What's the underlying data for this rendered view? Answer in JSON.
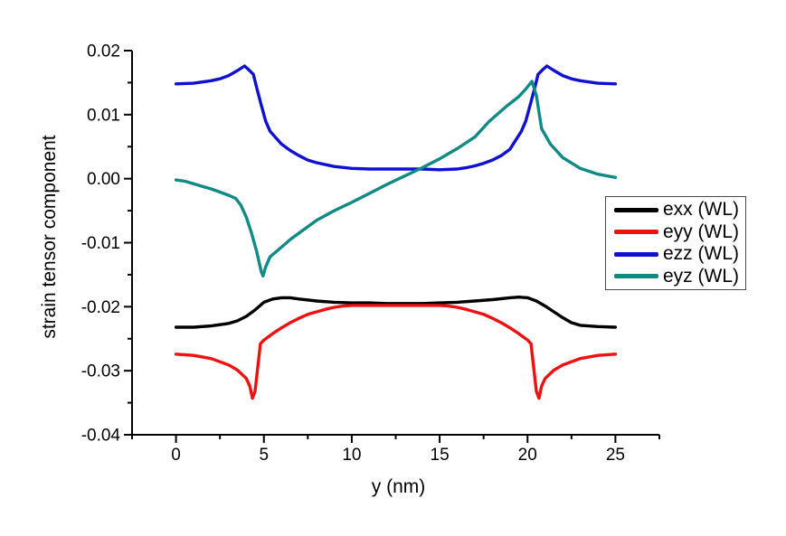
{
  "chart_data": {
    "type": "line",
    "title": "",
    "xlabel": "y (nm)",
    "ylabel": "strain tensor component",
    "xlim": [
      -2.5,
      27.5
    ],
    "ylim": [
      -0.04,
      0.02
    ],
    "grid": false,
    "legend_position": "right-center",
    "x_ticks": [
      {
        "value": 0,
        "label": "0"
      },
      {
        "value": 5,
        "label": "5"
      },
      {
        "value": 10,
        "label": "10"
      },
      {
        "value": 15,
        "label": "15"
      },
      {
        "value": 20,
        "label": "20"
      },
      {
        "value": 25,
        "label": "25"
      }
    ],
    "x_minor_ticks": [
      -2.5,
      2.5,
      7.5,
      12.5,
      17.5,
      22.5,
      27.5
    ],
    "y_ticks": [
      {
        "value": 0.02,
        "label": "0.02"
      },
      {
        "value": 0.01,
        "label": "0.01"
      },
      {
        "value": 0.0,
        "label": "0.00"
      },
      {
        "value": -0.01,
        "label": "-0.01"
      },
      {
        "value": -0.02,
        "label": "-0.02"
      },
      {
        "value": -0.03,
        "label": "-0.03"
      },
      {
        "value": -0.04,
        "label": "-0.04"
      }
    ],
    "y_minor_ticks": [
      0.015,
      0.005,
      -0.005,
      -0.015,
      -0.025,
      -0.035
    ],
    "series": [
      {
        "name": "exx (WL)",
        "color": "#000000",
        "points": [
          [
            0,
            -0.0232
          ],
          [
            1,
            -0.0232
          ],
          [
            2,
            -0.023
          ],
          [
            3,
            -0.0226
          ],
          [
            3.5,
            -0.0222
          ],
          [
            4,
            -0.0215
          ],
          [
            4.5,
            -0.0205
          ],
          [
            5,
            -0.0193
          ],
          [
            5.5,
            -0.0188
          ],
          [
            6,
            -0.0186
          ],
          [
            6.5,
            -0.0186
          ],
          [
            7,
            -0.0188
          ],
          [
            8,
            -0.0191
          ],
          [
            9,
            -0.0193
          ],
          [
            10,
            -0.0194
          ],
          [
            11,
            -0.0194
          ],
          [
            12,
            -0.0195
          ],
          [
            13,
            -0.0195
          ],
          [
            14,
            -0.0195
          ],
          [
            15,
            -0.0194
          ],
          [
            16,
            -0.0193
          ],
          [
            17,
            -0.0191
          ],
          [
            18,
            -0.0189
          ],
          [
            19,
            -0.0186
          ],
          [
            19.5,
            -0.0185
          ],
          [
            20,
            -0.0186
          ],
          [
            20.5,
            -0.0191
          ],
          [
            21,
            -0.0199
          ],
          [
            21.5,
            -0.0208
          ],
          [
            22,
            -0.0217
          ],
          [
            22.5,
            -0.0225
          ],
          [
            23,
            -0.0229
          ],
          [
            24,
            -0.0231
          ],
          [
            25,
            -0.0232
          ]
        ]
      },
      {
        "name": "eyy (WL)",
        "color": "#ee1111",
        "points": [
          [
            0,
            -0.0274
          ],
          [
            1,
            -0.0276
          ],
          [
            2,
            -0.0281
          ],
          [
            3,
            -0.0291
          ],
          [
            3.5,
            -0.0299
          ],
          [
            4,
            -0.0312
          ],
          [
            4.2,
            -0.0324
          ],
          [
            4.35,
            -0.0343
          ],
          [
            4.5,
            -0.0332
          ],
          [
            4.8,
            -0.0258
          ],
          [
            5,
            -0.0252
          ],
          [
            5.5,
            -0.0242
          ],
          [
            6,
            -0.0233
          ],
          [
            6.5,
            -0.0225
          ],
          [
            7,
            -0.0218
          ],
          [
            7.5,
            -0.0212
          ],
          [
            8,
            -0.0208
          ],
          [
            8.5,
            -0.0204
          ],
          [
            9,
            -0.0201
          ],
          [
            9.5,
            -0.0199
          ],
          [
            10,
            -0.0198
          ],
          [
            11,
            -0.0198
          ],
          [
            12,
            -0.0198
          ],
          [
            13,
            -0.0198
          ],
          [
            14,
            -0.0198
          ],
          [
            15,
            -0.0198
          ],
          [
            15.5,
            -0.0199
          ],
          [
            16,
            -0.0201
          ],
          [
            16.5,
            -0.0204
          ],
          [
            17,
            -0.0208
          ],
          [
            17.5,
            -0.0212
          ],
          [
            18,
            -0.0218
          ],
          [
            18.5,
            -0.0225
          ],
          [
            19,
            -0.0233
          ],
          [
            19.5,
            -0.0242
          ],
          [
            20,
            -0.0252
          ],
          [
            20.2,
            -0.0258
          ],
          [
            20.5,
            -0.0332
          ],
          [
            20.65,
            -0.0343
          ],
          [
            20.8,
            -0.0324
          ],
          [
            21,
            -0.0312
          ],
          [
            21.5,
            -0.0299
          ],
          [
            22,
            -0.0291
          ],
          [
            23,
            -0.0281
          ],
          [
            24,
            -0.0276
          ],
          [
            25,
            -0.0274
          ]
        ]
      },
      {
        "name": "ezz (WL)",
        "color": "#1010d2",
        "points": [
          [
            0,
            0.0148
          ],
          [
            1,
            0.0149
          ],
          [
            2,
            0.0153
          ],
          [
            2.5,
            0.0156
          ],
          [
            3,
            0.0161
          ],
          [
            3.5,
            0.0169
          ],
          [
            3.9,
            0.0176
          ],
          [
            4.1,
            0.0171
          ],
          [
            4.4,
            0.0163
          ],
          [
            4.6,
            0.0141
          ],
          [
            4.8,
            0.012
          ],
          [
            5.1,
            0.009
          ],
          [
            5.35,
            0.0074
          ],
          [
            6,
            0.0054
          ],
          [
            6.5,
            0.0044
          ],
          [
            7,
            0.0036
          ],
          [
            7.5,
            0.0029
          ],
          [
            8,
            0.0025
          ],
          [
            9,
            0.0019
          ],
          [
            10,
            0.0016
          ],
          [
            11,
            0.0015
          ],
          [
            12,
            0.0015
          ],
          [
            13,
            0.0015
          ],
          [
            14,
            0.0015
          ],
          [
            15,
            0.0014
          ],
          [
            16,
            0.0015
          ],
          [
            16.5,
            0.0017
          ],
          [
            17,
            0.002
          ],
          [
            17.5,
            0.0024
          ],
          [
            18,
            0.0029
          ],
          [
            18.5,
            0.0036
          ],
          [
            19,
            0.0046
          ],
          [
            19.65,
            0.0074
          ],
          [
            19.9,
            0.009
          ],
          [
            20.2,
            0.012
          ],
          [
            20.4,
            0.0141
          ],
          [
            20.6,
            0.0163
          ],
          [
            20.9,
            0.0171
          ],
          [
            21.1,
            0.0176
          ],
          [
            21.5,
            0.0169
          ],
          [
            22,
            0.0161
          ],
          [
            22.5,
            0.0156
          ],
          [
            23,
            0.0153
          ],
          [
            24,
            0.0149
          ],
          [
            25,
            0.0148
          ]
        ]
      },
      {
        "name": "eyz (WL)",
        "color": "#0f8a84",
        "points": [
          [
            0,
            -0.0002
          ],
          [
            0.5,
            -0.0004
          ],
          [
            1,
            -0.0008
          ],
          [
            1.5,
            -0.0012
          ],
          [
            2,
            -0.0016
          ],
          [
            2.5,
            -0.0021
          ],
          [
            3,
            -0.0026
          ],
          [
            3.4,
            -0.0031
          ],
          [
            3.7,
            -0.0042
          ],
          [
            4,
            -0.006
          ],
          [
            4.3,
            -0.0085
          ],
          [
            4.6,
            -0.0115
          ],
          [
            4.85,
            -0.0145
          ],
          [
            4.95,
            -0.0152
          ],
          [
            5.1,
            -0.0138
          ],
          [
            5.35,
            -0.0122
          ],
          [
            6,
            -0.0107
          ],
          [
            6.5,
            -0.0095
          ],
          [
            7,
            -0.0085
          ],
          [
            8,
            -0.0065
          ],
          [
            9,
            -0.005
          ],
          [
            10,
            -0.0037
          ],
          [
            11,
            -0.0023
          ],
          [
            12,
            -0.0009
          ],
          [
            13,
            0.0004
          ],
          [
            14,
            0.0017
          ],
          [
            15,
            0.0031
          ],
          [
            16,
            0.0047
          ],
          [
            17,
            0.0065
          ],
          [
            17.8,
            0.0089
          ],
          [
            18.8,
            0.0113
          ],
          [
            19.5,
            0.0128
          ],
          [
            19.9,
            0.014
          ],
          [
            20.25,
            0.0152
          ],
          [
            20.5,
            0.013
          ],
          [
            20.8,
            0.0078
          ],
          [
            21.3,
            0.0054
          ],
          [
            22,
            0.0033
          ],
          [
            23,
            0.0016
          ],
          [
            24,
            0.0007
          ],
          [
            25,
            0.0002
          ]
        ]
      }
    ]
  }
}
